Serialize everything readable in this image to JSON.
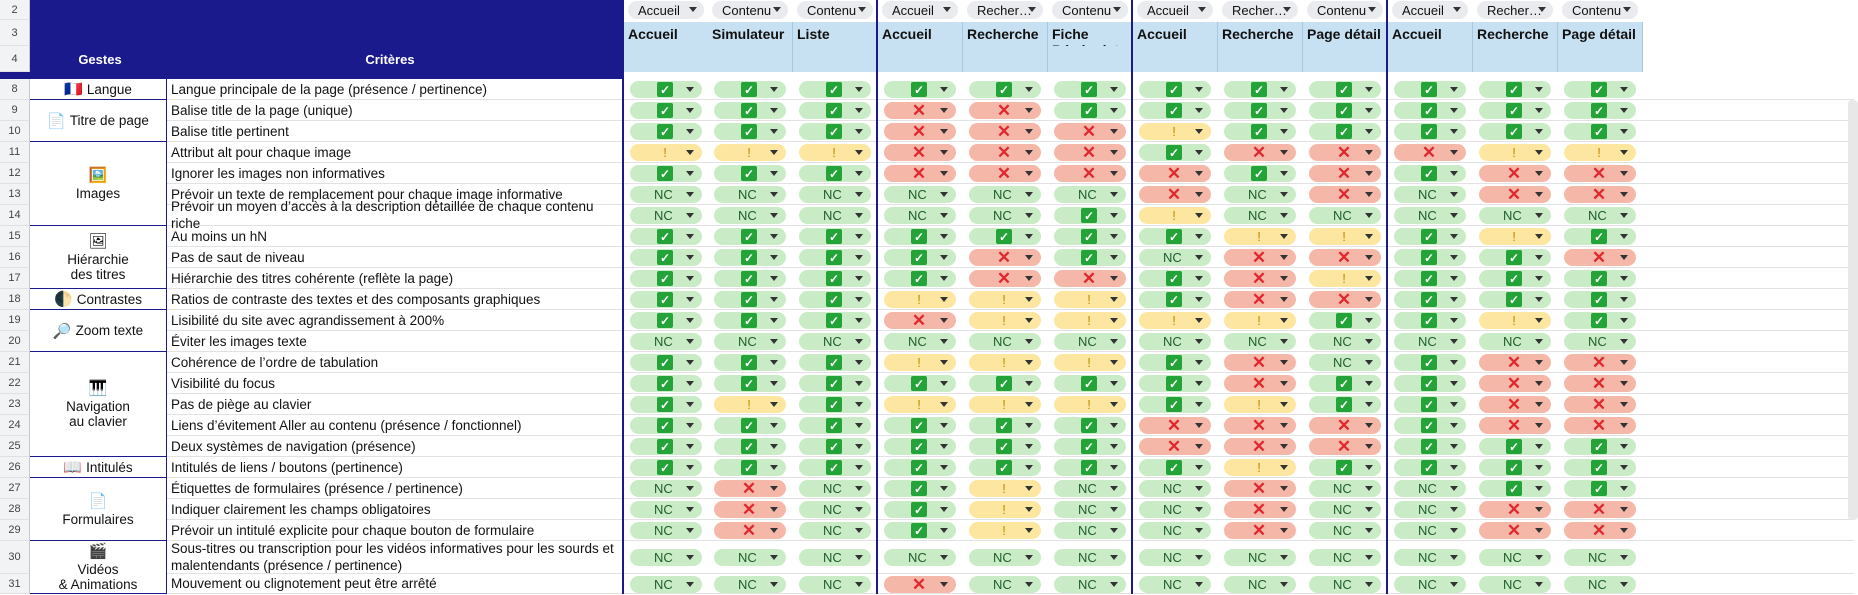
{
  "header": {
    "row_numbers": [
      "2",
      "3",
      "4"
    ],
    "gestes_label": "Gestes",
    "criteres_label": "Critères"
  },
  "columns": [
    {
      "category": "Accueil",
      "page": "Accueil"
    },
    {
      "category": "Contenu",
      "page": "Simulateur"
    },
    {
      "category": "Contenu",
      "page": "Liste"
    },
    {
      "category": "Accueil",
      "page": "Accueil"
    },
    {
      "category": "Recher…",
      "page": "Recherche"
    },
    {
      "category": "Contenu",
      "page": "Fiche Bénévolat"
    },
    {
      "category": "Accueil",
      "page": "Accueil"
    },
    {
      "category": "Recher…",
      "page": "Recherche"
    },
    {
      "category": "Contenu",
      "page": "Page détail"
    },
    {
      "category": "Accueil",
      "page": "Accueil"
    },
    {
      "category": "Recher…",
      "page": "Recherche"
    },
    {
      "category": "Contenu",
      "page": "Page détail"
    }
  ],
  "gestes": [
    {
      "icon": "🇫🇷",
      "icon_name": "french-flag-icon",
      "lines": [
        "Langue"
      ]
    },
    {
      "icon": "📄",
      "icon_name": "page-icon",
      "lines": [
        "Titre de page"
      ]
    },
    {
      "icon": "🖼️",
      "icon_name": "picture-icon",
      "lines": [
        "Images"
      ]
    },
    {
      "icon": "🖼",
      "icon_name": "heading-image-icon",
      "lines": [
        "Hiérarchie",
        "des titres"
      ]
    },
    {
      "icon": "🌓",
      "icon_name": "contrast-moon-icon",
      "lines": [
        "Contrastes"
      ]
    },
    {
      "icon": "🔎",
      "icon_name": "magnifier-icon",
      "lines": [
        "Zoom texte"
      ]
    },
    {
      "icon": "🎹",
      "icon_name": "keyboard-icon",
      "lines": [
        "Navigation",
        "au clavier"
      ]
    },
    {
      "icon": "📖",
      "icon_name": "book-icon",
      "lines": [
        "Intitulés"
      ]
    },
    {
      "icon": "📄",
      "icon_name": "form-icon",
      "lines": [
        "Formulaires"
      ]
    },
    {
      "icon": "🎬",
      "icon_name": "clapperboard-icon",
      "lines": [
        "Vidéos",
        "& Animations"
      ]
    }
  ],
  "rows": [
    {
      "num": "8",
      "critere": "Langue principale de la page (présence / pertinence)",
      "status": [
        "ok",
        "ok",
        "ok",
        "ok",
        "ok",
        "ok",
        "ok",
        "ok",
        "ok",
        "ok",
        "ok",
        "ok"
      ]
    },
    {
      "num": "9",
      "critere": "Balise title de la page (unique)",
      "status": [
        "ok",
        "ok",
        "ok",
        "ko",
        "ko",
        "ok",
        "ok",
        "ok",
        "ok",
        "ok",
        "ok",
        "ok"
      ]
    },
    {
      "num": "10",
      "critere": "Balise title pertinent",
      "status": [
        "ok",
        "ok",
        "ok",
        "ko",
        "ko",
        "ko",
        "warn",
        "ok",
        "ok",
        "ok",
        "ok",
        "ok"
      ]
    },
    {
      "num": "11",
      "critere": "Attribut alt pour chaque image",
      "status": [
        "warn",
        "warn",
        "warn",
        "ko",
        "ko",
        "ko",
        "ok",
        "ko",
        "ko",
        "ko",
        "warn",
        "warn"
      ]
    },
    {
      "num": "12",
      "critere": "Ignorer les images non informatives",
      "status": [
        "ok",
        "ok",
        "ok",
        "ko",
        "ko",
        "ko",
        "ko",
        "ok",
        "ko",
        "ok",
        "ko",
        "ko"
      ]
    },
    {
      "num": "13",
      "critere": "Prévoir un texte de remplacement pour chaque image informative",
      "status": [
        "nc",
        "nc",
        "nc",
        "nc",
        "nc",
        "nc",
        "ko",
        "nc",
        "ko",
        "nc",
        "ko",
        "ko"
      ]
    },
    {
      "num": "14",
      "critere": "Prévoir un moyen d’accès à la description détaillée de chaque contenu riche",
      "status": [
        "nc",
        "nc",
        "nc",
        "nc",
        "nc",
        "ok",
        "warn",
        "nc",
        "nc",
        "nc",
        "nc",
        "nc"
      ]
    },
    {
      "num": "15",
      "critere": "Au moins un hN",
      "status": [
        "ok",
        "ok",
        "ok",
        "ok",
        "ok",
        "ok",
        "ok",
        "warn",
        "warn",
        "ok",
        "warn",
        "ok"
      ]
    },
    {
      "num": "16",
      "critere": "Pas de saut de niveau",
      "status": [
        "ok",
        "ok",
        "ok",
        "ok",
        "ko",
        "ok",
        "nc",
        "ko",
        "ko",
        "ok",
        "ok",
        "ko"
      ]
    },
    {
      "num": "17",
      "critere": "Hiérarchie des titres cohérente (reflète la page)",
      "status": [
        "ok",
        "ok",
        "ok",
        "ok",
        "ko",
        "ko",
        "ok",
        "ko",
        "warn",
        "ok",
        "ok",
        "ok"
      ]
    },
    {
      "num": "18",
      "critere": "Ratios de contraste des textes et des composants graphiques",
      "status": [
        "ok",
        "ok",
        "ok",
        "warn",
        "warn",
        "warn",
        "ok",
        "ko",
        "ko",
        "ok",
        "ok",
        "ok"
      ]
    },
    {
      "num": "19",
      "critere": "Lisibilité du site avec agrandissement à 200%",
      "status": [
        "ok",
        "ok",
        "ok",
        "ko",
        "warn",
        "warn",
        "warn",
        "warn",
        "ok",
        "ok",
        "warn",
        "ok"
      ]
    },
    {
      "num": "20",
      "critere": "Éviter les images texte",
      "status": [
        "nc",
        "nc",
        "nc",
        "nc",
        "nc",
        "nc",
        "nc",
        "nc",
        "nc",
        "nc",
        "nc",
        "nc"
      ]
    },
    {
      "num": "21",
      "critere": "Cohérence de l’ordre de tabulation",
      "status": [
        "ok",
        "ok",
        "ok",
        "warn",
        "warn",
        "warn",
        "ok",
        "ko",
        "nc",
        "ok",
        "ko",
        "ko"
      ]
    },
    {
      "num": "22",
      "critere": "Visibilité du focus",
      "status": [
        "ok",
        "ok",
        "ok",
        "ok",
        "ok",
        "ok",
        "ok",
        "ko",
        "ok",
        "ok",
        "ko",
        "ko"
      ]
    },
    {
      "num": "23",
      "critere": "Pas de piège au clavier",
      "status": [
        "ok",
        "warn",
        "ok",
        "warn",
        "warn",
        "warn",
        "ok",
        "warn",
        "ok",
        "ok",
        "ko",
        "ko"
      ]
    },
    {
      "num": "24",
      "critere": "Liens d’évitement Aller au contenu (présence / fonctionnel)",
      "status": [
        "ok",
        "ok",
        "ok",
        "ok",
        "ok",
        "ok",
        "ko",
        "ko",
        "ko",
        "ok",
        "ko",
        "ko"
      ]
    },
    {
      "num": "25",
      "critere": "Deux systèmes de navigation (présence)",
      "status": [
        "ok",
        "ok",
        "ok",
        "ok",
        "ok",
        "ok",
        "ko",
        "ko",
        "ko",
        "ok",
        "ok",
        "ok"
      ]
    },
    {
      "num": "26",
      "critere": "Intitulés de liens / boutons (pertinence)",
      "status": [
        "ok",
        "ok",
        "ok",
        "ok",
        "ok",
        "ok",
        "ok",
        "warn",
        "ok",
        "ok",
        "ok",
        "ok"
      ]
    },
    {
      "num": "27",
      "critere": "Étiquettes de formulaires (présence / pertinence)",
      "status": [
        "nc",
        "ko",
        "nc",
        "ok",
        "warn",
        "nc",
        "nc",
        "ko",
        "nc",
        "nc",
        "ok",
        "ok"
      ]
    },
    {
      "num": "28",
      "critere": "Indiquer clairement les champs obligatoires",
      "status": [
        "nc",
        "ko",
        "nc",
        "ok",
        "warn",
        "nc",
        "nc",
        "ko",
        "nc",
        "nc",
        "ko",
        "ko"
      ]
    },
    {
      "num": "29",
      "critere": "Prévoir un intitulé explicite pour chaque bouton de formulaire",
      "status": [
        "nc",
        "ko",
        "nc",
        "ok",
        "warn",
        "nc",
        "nc",
        "ko",
        "nc",
        "nc",
        "ko",
        "ko"
      ]
    },
    {
      "num": "30",
      "critere": "Sous-titres ou transcription pour les vidéos informatives pour les sourds et malentendants (présence / pertinence)",
      "status": [
        "nc",
        "nc",
        "nc",
        "nc",
        "nc",
        "nc",
        "nc",
        "nc",
        "nc",
        "nc",
        "nc",
        "nc"
      ]
    },
    {
      "num": "31",
      "critere": "Mouvement ou clignotement peut être arrêté",
      "status": [
        "nc",
        "nc",
        "nc",
        "ko",
        "nc",
        "nc",
        "nc",
        "nc",
        "nc",
        "nc",
        "nc",
        "nc"
      ]
    }
  ],
  "status_labels": {
    "nc": "NC"
  },
  "status_icons": {
    "ok": "check-icon",
    "ko": "cross-icon",
    "warn": "warning-icon"
  },
  "colors": {
    "header_navy": "#1a1a8c",
    "page_header_blue": "#c7e0f2",
    "ok_bg": "#c9ecc6",
    "ko_bg": "#f5b8a8",
    "warn_bg": "#fde6a0",
    "check_green": "#23a338",
    "cross_red": "#e0282e"
  }
}
